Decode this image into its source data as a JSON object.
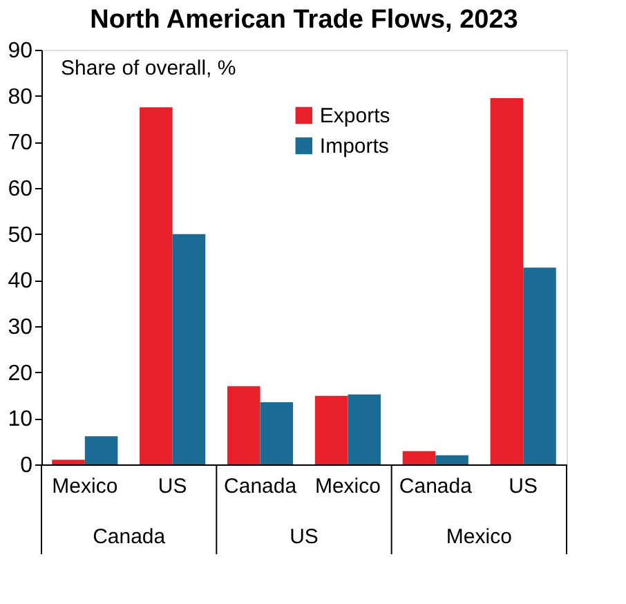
{
  "chart_data": {
    "type": "bar",
    "title": "North American Trade Flows, 2023",
    "ylabel": "Share of overall, %",
    "categories": [
      "Mexico",
      "US",
      "Canada",
      "Mexico",
      "Canada",
      "US"
    ],
    "series": [
      {
        "name": "Exports",
        "color": "#e8202a",
        "values": [
          1,
          77.5,
          17,
          14.9,
          2.9,
          79.5
        ]
      },
      {
        "name": "Imports",
        "color": "#1b6c94",
        "values": [
          6.1,
          50,
          13.5,
          15.2,
          2,
          42.7
        ]
      }
    ],
    "annotations": [
      "Canada",
      "US",
      "Mexico"
    ],
    "ylim": [
      0,
      90
    ],
    "yticks": [
      0,
      10,
      20,
      30,
      40,
      50,
      60,
      70,
      80,
      90
    ],
    "grid": false,
    "legend": "top"
  }
}
